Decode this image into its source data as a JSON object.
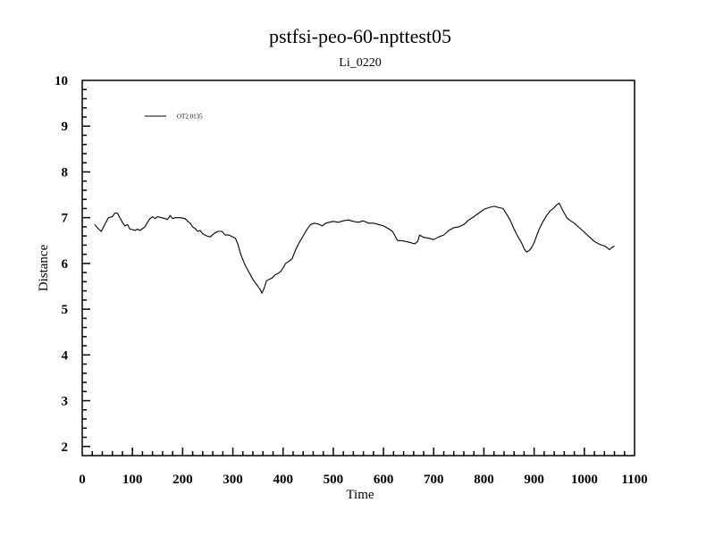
{
  "chart_data": {
    "type": "line",
    "title": "pstfsi-peo-60-npttest05",
    "subtitle": "Li_0220",
    "xlabel": "Time",
    "ylabel": "Distance",
    "xlim": [
      0,
      1100
    ],
    "ylim": [
      1.8,
      10
    ],
    "x_ticks": [
      "0",
      "100",
      "200",
      "300",
      "400",
      "500",
      "600",
      "700",
      "800",
      "900",
      "1000",
      "1100"
    ],
    "y_ticks": [
      "2",
      "3",
      "4",
      "5",
      "6",
      "7",
      "8",
      "9",
      "10"
    ],
    "grid": false,
    "legend_position": "top-left",
    "series": [
      {
        "name": "OT2 0135",
        "color": "#000000",
        "points": [
          [
            25,
            6.85
          ],
          [
            30,
            6.78
          ],
          [
            38,
            6.7
          ],
          [
            45,
            6.85
          ],
          [
            52,
            7.0
          ],
          [
            60,
            7.02
          ],
          [
            65,
            7.1
          ],
          [
            70,
            7.1
          ],
          [
            75,
            7.0
          ],
          [
            80,
            6.9
          ],
          [
            85,
            6.82
          ],
          [
            90,
            6.85
          ],
          [
            95,
            6.75
          ],
          [
            100,
            6.74
          ],
          [
            105,
            6.72
          ],
          [
            110,
            6.75
          ],
          [
            115,
            6.72
          ],
          [
            120,
            6.76
          ],
          [
            125,
            6.8
          ],
          [
            130,
            6.9
          ],
          [
            135,
            6.98
          ],
          [
            140,
            7.02
          ],
          [
            145,
            6.98
          ],
          [
            150,
            7.02
          ],
          [
            158,
            7.0
          ],
          [
            165,
            6.98
          ],
          [
            170,
            6.96
          ],
          [
            175,
            7.05
          ],
          [
            180,
            6.98
          ],
          [
            185,
            7.0
          ],
          [
            195,
            7.0
          ],
          [
            205,
            6.98
          ],
          [
            210,
            6.92
          ],
          [
            215,
            6.88
          ],
          [
            220,
            6.8
          ],
          [
            225,
            6.76
          ],
          [
            230,
            6.7
          ],
          [
            235,
            6.72
          ],
          [
            240,
            6.65
          ],
          [
            248,
            6.6
          ],
          [
            255,
            6.58
          ],
          [
            262,
            6.65
          ],
          [
            270,
            6.7
          ],
          [
            278,
            6.7
          ],
          [
            285,
            6.62
          ],
          [
            292,
            6.62
          ],
          [
            300,
            6.58
          ],
          [
            305,
            6.55
          ],
          [
            310,
            6.42
          ],
          [
            315,
            6.22
          ],
          [
            320,
            6.08
          ],
          [
            325,
            5.95
          ],
          [
            330,
            5.85
          ],
          [
            335,
            5.75
          ],
          [
            340,
            5.65
          ],
          [
            345,
            5.57
          ],
          [
            350,
            5.5
          ],
          [
            355,
            5.42
          ],
          [
            358,
            5.35
          ],
          [
            362,
            5.45
          ],
          [
            367,
            5.62
          ],
          [
            372,
            5.65
          ],
          [
            378,
            5.68
          ],
          [
            384,
            5.75
          ],
          [
            390,
            5.78
          ],
          [
            395,
            5.82
          ],
          [
            400,
            5.9
          ],
          [
            405,
            6.0
          ],
          [
            412,
            6.05
          ],
          [
            418,
            6.1
          ],
          [
            425,
            6.3
          ],
          [
            432,
            6.45
          ],
          [
            440,
            6.6
          ],
          [
            448,
            6.75
          ],
          [
            455,
            6.85
          ],
          [
            462,
            6.88
          ],
          [
            470,
            6.86
          ],
          [
            478,
            6.82
          ],
          [
            485,
            6.88
          ],
          [
            492,
            6.9
          ],
          [
            500,
            6.92
          ],
          [
            510,
            6.9
          ],
          [
            520,
            6.93
          ],
          [
            530,
            6.95
          ],
          [
            540,
            6.92
          ],
          [
            550,
            6.9
          ],
          [
            560,
            6.93
          ],
          [
            570,
            6.88
          ],
          [
            580,
            6.88
          ],
          [
            590,
            6.85
          ],
          [
            600,
            6.82
          ],
          [
            610,
            6.76
          ],
          [
            618,
            6.7
          ],
          [
            623,
            6.6
          ],
          [
            628,
            6.5
          ],
          [
            635,
            6.5
          ],
          [
            645,
            6.48
          ],
          [
            655,
            6.45
          ],
          [
            662,
            6.43
          ],
          [
            668,
            6.48
          ],
          [
            672,
            6.62
          ],
          [
            680,
            6.57
          ],
          [
            690,
            6.55
          ],
          [
            700,
            6.52
          ],
          [
            710,
            6.58
          ],
          [
            720,
            6.62
          ],
          [
            730,
            6.72
          ],
          [
            740,
            6.78
          ],
          [
            750,
            6.8
          ],
          [
            760,
            6.85
          ],
          [
            770,
            6.95
          ],
          [
            780,
            7.02
          ],
          [
            790,
            7.1
          ],
          [
            800,
            7.18
          ],
          [
            810,
            7.22
          ],
          [
            820,
            7.25
          ],
          [
            830,
            7.22
          ],
          [
            838,
            7.2
          ],
          [
            845,
            7.08
          ],
          [
            852,
            6.95
          ],
          [
            860,
            6.75
          ],
          [
            868,
            6.58
          ],
          [
            875,
            6.45
          ],
          [
            880,
            6.32
          ],
          [
            885,
            6.25
          ],
          [
            890,
            6.28
          ],
          [
            895,
            6.35
          ],
          [
            900,
            6.45
          ],
          [
            905,
            6.6
          ],
          [
            910,
            6.75
          ],
          [
            918,
            6.92
          ],
          [
            925,
            7.05
          ],
          [
            932,
            7.15
          ],
          [
            940,
            7.22
          ],
          [
            945,
            7.28
          ],
          [
            950,
            7.32
          ],
          [
            955,
            7.2
          ],
          [
            960,
            7.1
          ],
          [
            965,
            7.0
          ],
          [
            970,
            6.95
          ],
          [
            980,
            6.88
          ],
          [
            990,
            6.78
          ],
          [
            1000,
            6.68
          ],
          [
            1010,
            6.58
          ],
          [
            1020,
            6.48
          ],
          [
            1030,
            6.42
          ],
          [
            1040,
            6.38
          ],
          [
            1045,
            6.35
          ],
          [
            1050,
            6.3
          ],
          [
            1055,
            6.35
          ],
          [
            1060,
            6.38
          ]
        ]
      }
    ]
  }
}
